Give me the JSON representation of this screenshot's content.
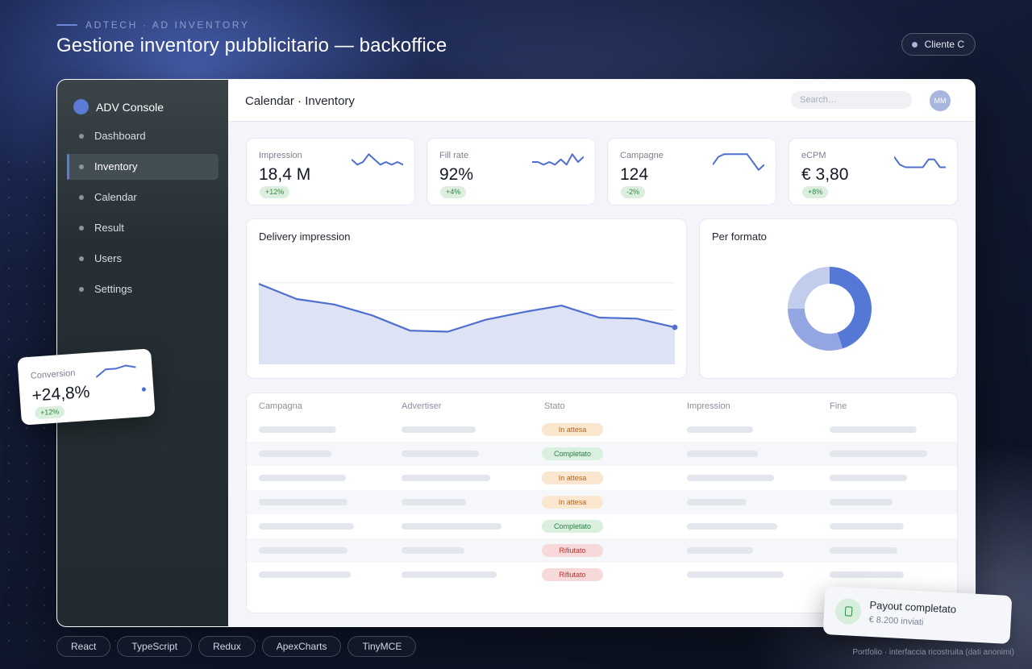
{
  "header": {
    "eyebrow": "ADTECH · AD INVENTORY",
    "title": "Gestione inventory pubblicitario — backoffice",
    "client": "Cliente C"
  },
  "sidebar": {
    "brand": "ADV Console",
    "items": [
      {
        "label": "Dashboard",
        "active": false
      },
      {
        "label": "Inventory",
        "active": true
      },
      {
        "label": "Calendar",
        "active": false
      },
      {
        "label": "Result",
        "active": false
      },
      {
        "label": "Users",
        "active": false
      },
      {
        "label": "Settings",
        "active": false
      }
    ]
  },
  "topbar": {
    "breadcrumb": "Calendar · Inventory",
    "search_placeholder": "Search…",
    "avatar_initials": "MM"
  },
  "kpis": [
    {
      "label": "Impression",
      "value": "18,4 M",
      "delta": "+12%",
      "trend": [
        5,
        3,
        4,
        7,
        5,
        3,
        4,
        3,
        4,
        3
      ]
    },
    {
      "label": "Fill rate",
      "value": "92%",
      "delta": "+4%",
      "trend": [
        4,
        4,
        3,
        4,
        3,
        5,
        3,
        7,
        4,
        6
      ]
    },
    {
      "label": "Campagne",
      "value": "124",
      "delta": "-2%",
      "trend": [
        3,
        6,
        7,
        7,
        7,
        7,
        7,
        4,
        1,
        3
      ]
    },
    {
      "label": "eCPM",
      "value": "€ 3,80",
      "delta": "+8%",
      "trend": [
        6,
        3,
        2,
        2,
        2,
        2,
        5,
        5,
        2,
        2
      ]
    }
  ],
  "charts": {
    "delivery_title": "Delivery impression",
    "format_title": "Per formato"
  },
  "chart_data": [
    {
      "type": "area",
      "title": "Delivery impression",
      "x": [
        1,
        2,
        3,
        4,
        5,
        6,
        7,
        8,
        9,
        10,
        11,
        12
      ],
      "values": [
        74,
        60,
        55,
        45,
        31,
        30,
        41,
        48,
        54,
        43,
        42,
        34
      ],
      "ylim": [
        0,
        100
      ],
      "grid": true,
      "color": "#4f6fd0"
    },
    {
      "type": "pie",
      "title": "Per formato",
      "values": [
        45,
        30,
        25
      ],
      "colors": [
        "#5577d6",
        "#93a6e2",
        "#c2cced"
      ],
      "donut": true
    }
  ],
  "table": {
    "columns": [
      "Campagna",
      "Advertiser",
      "Stato",
      "Impression",
      "Fine"
    ],
    "rows": [
      {
        "status": "In attesa",
        "kind": "wait"
      },
      {
        "status": "Completato",
        "kind": "done"
      },
      {
        "status": "In attesa",
        "kind": "wait"
      },
      {
        "status": "In attesa",
        "kind": "wait"
      },
      {
        "status": "Completato",
        "kind": "done"
      },
      {
        "status": "Rifiutato",
        "kind": "rej"
      },
      {
        "status": "Rifiutato",
        "kind": "rej"
      }
    ]
  },
  "floating_conversion": {
    "label": "Conversion",
    "value": "+24,8%",
    "delta": "+12%",
    "trend": [
      3,
      6,
      6,
      7,
      6,
      7
    ]
  },
  "toast": {
    "title": "Payout completato",
    "subtitle": "€ 8.200 inviati"
  },
  "tech_tags": [
    "React",
    "TypeScript",
    "Redux",
    "ApexCharts",
    "TinyMCE"
  ],
  "footer_note": "Portfolio · interfaccia ricostruita (dati anonimi)",
  "colors": {
    "accent": "#5b7bd6",
    "positive": "#2f8a45",
    "sidebar": "#263034"
  }
}
